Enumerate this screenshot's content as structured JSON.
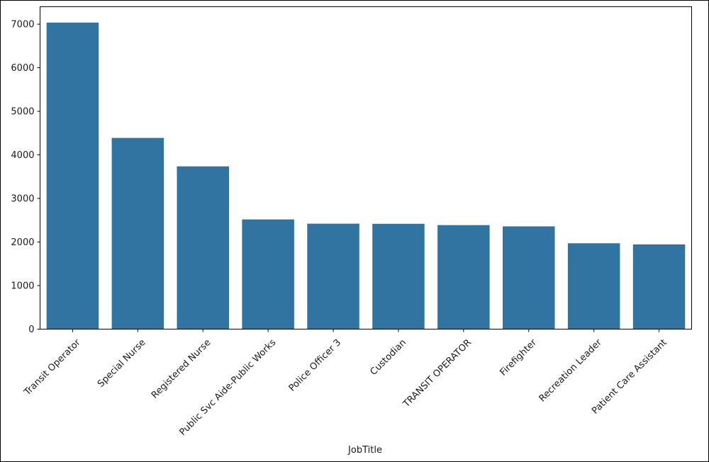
{
  "chart_data": {
    "type": "bar",
    "title": "",
    "xlabel": "JobTitle",
    "ylabel": "",
    "categories": [
      "Transit Operator",
      "Special Nurse",
      "Registered Nurse",
      "Public Svc Aide-Public Works",
      "Police Officer 3",
      "Custodian",
      "TRANSIT OPERATOR",
      "Firefighter",
      "Recreation Leader",
      "Patient Care Assistant"
    ],
    "values": [
      7036,
      4389,
      3736,
      2518,
      2421,
      2418,
      2388,
      2359,
      1971,
      1945
    ],
    "ylim": [
      0,
      7400
    ],
    "yticks": [
      0,
      1000,
      2000,
      3000,
      4000,
      5000,
      6000,
      7000
    ],
    "bar_color": "#3274a1",
    "grid": false,
    "legend": "none"
  }
}
